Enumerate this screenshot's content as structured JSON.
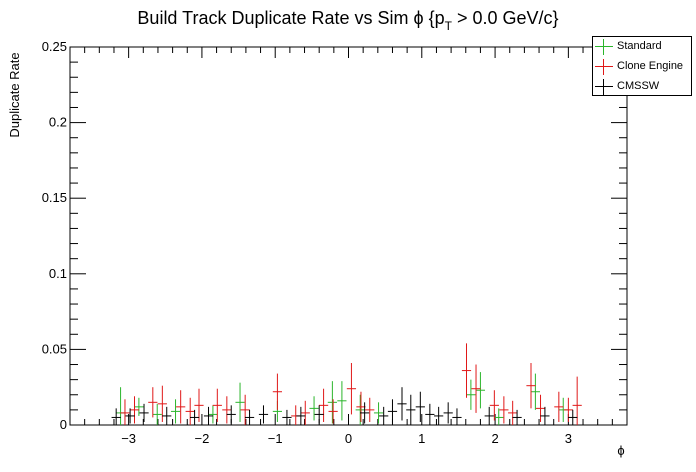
{
  "chart_data": {
    "type": "scatter",
    "title": "Build Track Duplicate Rate vs Sim ϕ {p",
    "title_sub": "T",
    "title_rest": " > 0.0 GeV/c}",
    "xlabel": "ϕ",
    "ylabel": "Duplicate Rate",
    "xlim": [
      -3.8,
      3.8
    ],
    "ylim": [
      0,
      0.25
    ],
    "grid": false,
    "legend_position": "top-right",
    "x_ticks": [
      "−3",
      "−2",
      "−1",
      "0",
      "1",
      "2",
      "3"
    ],
    "x_tick_values": [
      -3,
      -2,
      -1,
      0,
      1,
      2,
      3
    ],
    "y_ticks": [
      "0",
      "0.05",
      "0.1",
      "0.15",
      "0.2",
      "0.25"
    ],
    "y_tick_values": [
      0,
      0.05,
      0.1,
      0.15,
      0.2,
      0.25
    ],
    "bin_half_width": 0.0628,
    "series": [
      {
        "name": "Standard",
        "color": "#2bb52b",
        "points": [
          {
            "x": -3.11,
            "y": 0.008,
            "err": 0.017
          },
          {
            "x": -2.86,
            "y": 0.012,
            "err": 0.006
          },
          {
            "x": -2.61,
            "y": 0.007,
            "err": 0.007
          },
          {
            "x": -2.36,
            "y": 0.009,
            "err": 0.008
          },
          {
            "x": -1.85,
            "y": 0.007,
            "err": 0.006
          },
          {
            "x": -1.48,
            "y": 0.015,
            "err": 0.013
          },
          {
            "x": -0.97,
            "y": 0.009,
            "err": 0.007
          },
          {
            "x": -0.47,
            "y": 0.011,
            "err": 0.008
          },
          {
            "x": -0.22,
            "y": 0.015,
            "err": 0.014
          },
          {
            "x": -0.09,
            "y": 0.016,
            "err": 0.013
          },
          {
            "x": 0.16,
            "y": 0.01,
            "err": 0.01
          },
          {
            "x": 0.41,
            "y": 0.008,
            "err": 0.007
          },
          {
            "x": 1.67,
            "y": 0.02,
            "err": 0.01
          },
          {
            "x": 1.8,
            "y": 0.023,
            "err": 0.012
          },
          {
            "x": 2.05,
            "y": 0.005,
            "err": 0.006
          },
          {
            "x": 2.55,
            "y": 0.022,
            "err": 0.012
          },
          {
            "x": 2.93,
            "y": 0.01,
            "err": 0.008
          }
        ]
      },
      {
        "name": "Clone Engine",
        "color": "#e01818",
        "points": [
          {
            "x": -3.05,
            "y": 0.008,
            "err": 0.009
          },
          {
            "x": -2.92,
            "y": 0.01,
            "err": 0.009
          },
          {
            "x": -2.67,
            "y": 0.015,
            "err": 0.01
          },
          {
            "x": -2.54,
            "y": 0.014,
            "err": 0.012
          },
          {
            "x": -2.29,
            "y": 0.012,
            "err": 0.011
          },
          {
            "x": -2.16,
            "y": 0.009,
            "err": 0.009
          },
          {
            "x": -2.04,
            "y": 0.013,
            "err": 0.011
          },
          {
            "x": -1.79,
            "y": 0.013,
            "err": 0.011
          },
          {
            "x": -1.66,
            "y": 0.01,
            "err": 0.009
          },
          {
            "x": -1.41,
            "y": 0.01,
            "err": 0.01
          },
          {
            "x": -0.97,
            "y": 0.022,
            "err": 0.012
          },
          {
            "x": -0.72,
            "y": 0.006,
            "err": 0.007
          },
          {
            "x": -0.59,
            "y": 0.008,
            "err": 0.008
          },
          {
            "x": -0.34,
            "y": 0.013,
            "err": 0.011
          },
          {
            "x": -0.21,
            "y": 0.009,
            "err": 0.008
          },
          {
            "x": 0.04,
            "y": 0.024,
            "err": 0.017
          },
          {
            "x": 0.17,
            "y": 0.012,
            "err": 0.01
          },
          {
            "x": 0.29,
            "y": 0.01,
            "err": 0.008
          },
          {
            "x": 1.61,
            "y": 0.036,
            "err": 0.018
          },
          {
            "x": 1.74,
            "y": 0.024,
            "err": 0.016
          },
          {
            "x": 1.99,
            "y": 0.013,
            "err": 0.01
          },
          {
            "x": 2.12,
            "y": 0.01,
            "err": 0.009
          },
          {
            "x": 2.24,
            "y": 0.008,
            "err": 0.008
          },
          {
            "x": 2.49,
            "y": 0.026,
            "err": 0.015
          },
          {
            "x": 2.62,
            "y": 0.011,
            "err": 0.009
          },
          {
            "x": 2.87,
            "y": 0.012,
            "err": 0.01
          },
          {
            "x": 3.0,
            "y": 0.01,
            "err": 0.008
          },
          {
            "x": 3.12,
            "y": 0.013,
            "err": 0.019
          }
        ]
      },
      {
        "name": "CMSSW",
        "color": "#000000",
        "points": [
          {
            "x": -3.17,
            "y": 0.005,
            "err": 0.006
          },
          {
            "x": -2.98,
            "y": 0.006,
            "err": 0.005
          },
          {
            "x": -2.79,
            "y": 0.008,
            "err": 0.006
          },
          {
            "x": -2.48,
            "y": 0.006,
            "err": 0.006
          },
          {
            "x": -2.1,
            "y": 0.005,
            "err": 0.005
          },
          {
            "x": -1.91,
            "y": 0.006,
            "err": 0.006
          },
          {
            "x": -1.6,
            "y": 0.007,
            "err": 0.006
          },
          {
            "x": -1.35,
            "y": 0.005,
            "err": 0.005
          },
          {
            "x": -1.16,
            "y": 0.007,
            "err": 0.006
          },
          {
            "x": -0.84,
            "y": 0.005,
            "err": 0.005
          },
          {
            "x": -0.65,
            "y": 0.006,
            "err": 0.006
          },
          {
            "x": -0.4,
            "y": 0.007,
            "err": 0.006
          },
          {
            "x": 0.22,
            "y": 0.008,
            "err": 0.007
          },
          {
            "x": 0.48,
            "y": 0.006,
            "err": 0.006
          },
          {
            "x": 0.6,
            "y": 0.009,
            "err": 0.008
          },
          {
            "x": 0.73,
            "y": 0.014,
            "err": 0.011
          },
          {
            "x": 0.85,
            "y": 0.01,
            "err": 0.01
          },
          {
            "x": 0.98,
            "y": 0.012,
            "err": 0.01
          },
          {
            "x": 1.11,
            "y": 0.007,
            "err": 0.007
          },
          {
            "x": 1.23,
            "y": 0.006,
            "err": 0.006
          },
          {
            "x": 1.36,
            "y": 0.008,
            "err": 0.007
          },
          {
            "x": 1.48,
            "y": 0.005,
            "err": 0.006
          },
          {
            "x": 1.92,
            "y": 0.006,
            "err": 0.006
          },
          {
            "x": 2.3,
            "y": 0.005,
            "err": 0.005
          },
          {
            "x": 2.68,
            "y": 0.006,
            "err": 0.006
          },
          {
            "x": 3.06,
            "y": 0.005,
            "err": 0.005
          }
        ]
      }
    ]
  },
  "legend": {
    "items": [
      {
        "label": "Standard",
        "color": "#2bb52b"
      },
      {
        "label": "Clone Engine",
        "color": "#e01818"
      },
      {
        "label": "CMSSW",
        "color": "#000000"
      }
    ]
  }
}
